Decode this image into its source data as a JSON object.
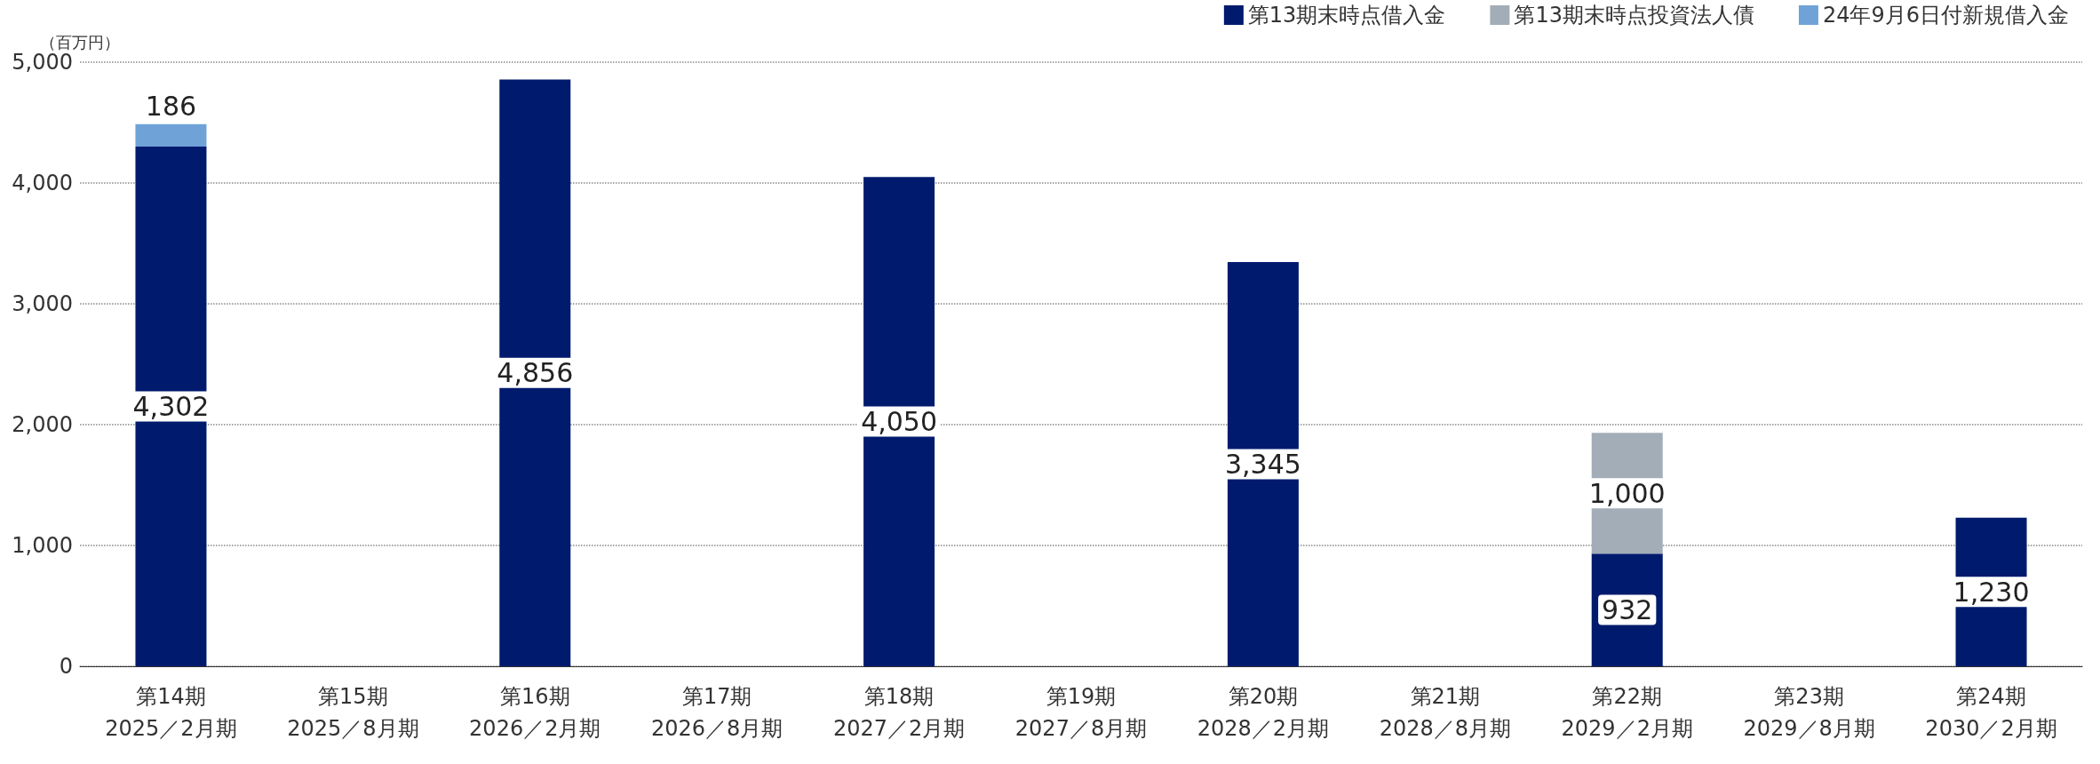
{
  "chart_data": {
    "type": "bar",
    "stacked": true,
    "ylabel": "（百万円）",
    "categories": [
      "第14期\n2025／2月期",
      "第15期\n2025／8月期",
      "第16期\n2026／2月期",
      "第17期\n2026／8月期",
      "第18期\n2027／2月期",
      "第19期\n2027／8月期",
      "第20期\n2028／2月期",
      "第21期\n2028／8月期",
      "第22期\n2029／2月期",
      "第23期\n2029／8月期",
      "第24期\n2030／2月期"
    ],
    "series": [
      {
        "name": "第13期末時点借入金",
        "color": "#001a6e",
        "values": [
          4302,
          null,
          4856,
          null,
          4050,
          null,
          3345,
          null,
          932,
          null,
          1230
        ],
        "value_labels": [
          "4,302",
          null,
          "4,856",
          null,
          "4,050",
          null,
          "3,345",
          null,
          "932",
          null,
          "1,230"
        ]
      },
      {
        "name": "第13期末時点投資法人債",
        "color": "#a2adb8",
        "values": [
          null,
          null,
          null,
          null,
          null,
          null,
          null,
          null,
          1000,
          null,
          null
        ],
        "value_labels": [
          null,
          null,
          null,
          null,
          null,
          null,
          null,
          null,
          "1,000",
          null,
          null
        ]
      },
      {
        "name": "24年9月6日付新規借入金",
        "color": "#6fa3d8",
        "values": [
          186,
          null,
          null,
          null,
          null,
          null,
          null,
          null,
          null,
          null,
          null
        ],
        "value_labels": [
          "186",
          null,
          null,
          null,
          null,
          null,
          null,
          null,
          null,
          null,
          null
        ]
      }
    ],
    "ylim": [
      0,
      5000
    ],
    "yticks": [
      0,
      {
        "value": 1000,
        "label": "1,000"
      },
      {
        "value": 2000,
        "label": "2,000"
      },
      {
        "value": 3000,
        "label": "3,000"
      },
      {
        "value": 4000,
        "label": "4,000"
      },
      {
        "value": 5000,
        "label": "5,000"
      }
    ],
    "grid": "y",
    "legend": "top right"
  }
}
